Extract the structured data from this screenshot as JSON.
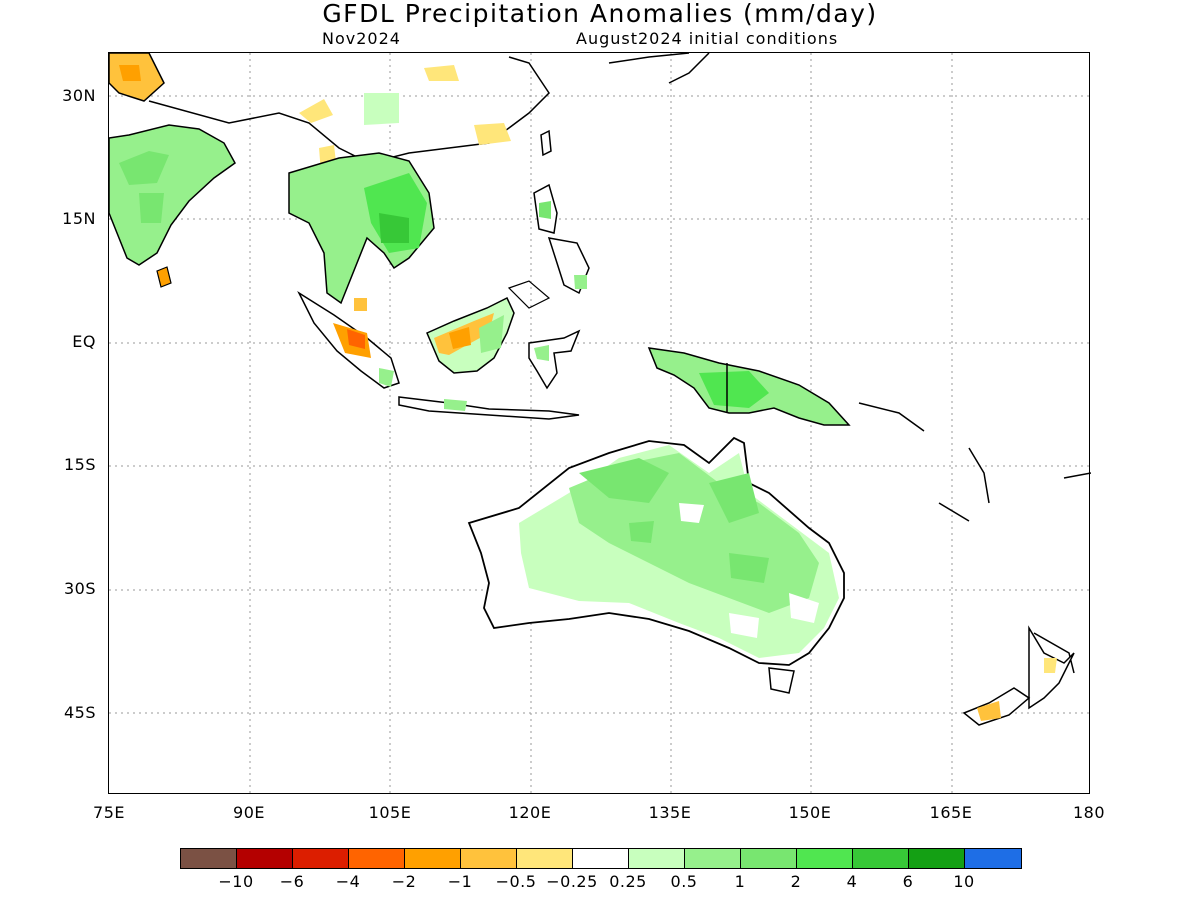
{
  "title": "GFDL Precipitation Anomalies (mm/day)",
  "subtitle_left": "Nov2024",
  "subtitle_right": "August2024 initial conditions",
  "lat_labels": [
    "30N",
    "15N",
    "EQ",
    "15S",
    "30S",
    "45S"
  ],
  "lon_labels": [
    "75E",
    "90E",
    "105E",
    "120E",
    "135E",
    "150E",
    "165E",
    "180"
  ],
  "colorbar": {
    "colors": [
      "#7b5144",
      "#b40000",
      "#dc1e00",
      "#ff6400",
      "#ffa000",
      "#ffc23c",
      "#ffe67a",
      "#ffffff",
      "#c8ffbe",
      "#96f08c",
      "#78e670",
      "#50e650",
      "#37c837",
      "#14a014",
      "#1e6ee6"
    ],
    "labels": [
      "−10",
      "−6",
      "−4",
      "−2",
      "−1",
      "−0.5",
      "−0.25",
      "0.25",
      "0.5",
      "1",
      "2",
      "4",
      "6",
      "10"
    ]
  },
  "colors": {
    "land_outline": "#000000",
    "grid": "#9a9a9a"
  }
}
